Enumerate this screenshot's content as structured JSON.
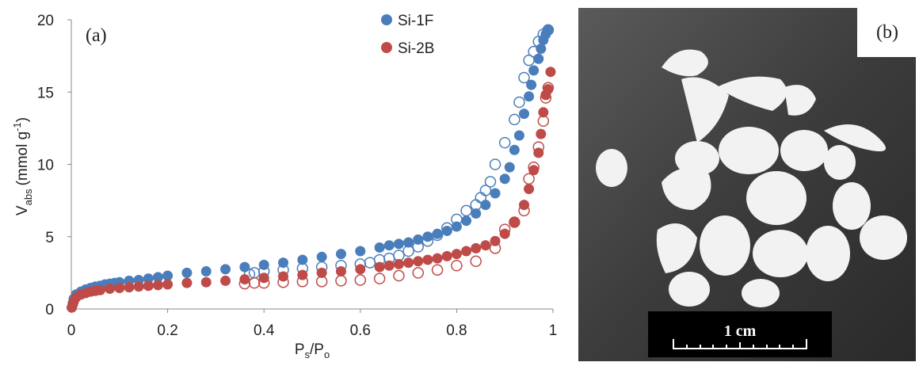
{
  "chart_data": {
    "type": "scatter",
    "panel_label": "(a)",
    "x_label": {
      "main": "P",
      "sub": "s",
      "mid": "/P",
      "sub2": "o"
    },
    "y_label": {
      "main": "V",
      "sub": "abs",
      "unit": "(mmol g",
      "sup": "-1",
      "close": ")"
    },
    "xlim": [
      0,
      1
    ],
    "xticks": [
      0,
      0.2,
      0.4,
      0.6,
      0.8,
      1
    ],
    "ylim": [
      0,
      20
    ],
    "yticks": [
      0,
      5,
      10,
      15,
      20
    ],
    "series": [
      {
        "name": "Si-1F",
        "color": "#4a7ebb",
        "adsorption": {
          "x": [
            0.001,
            0.003,
            0.005,
            0.01,
            0.02,
            0.03,
            0.04,
            0.05,
            0.06,
            0.07,
            0.08,
            0.09,
            0.1,
            0.12,
            0.14,
            0.16,
            0.18,
            0.2,
            0.24,
            0.28,
            0.32,
            0.36,
            0.4,
            0.44,
            0.48,
            0.52,
            0.56,
            0.6,
            0.64,
            0.66,
            0.68,
            0.7,
            0.72,
            0.74,
            0.76,
            0.78,
            0.8,
            0.82,
            0.84,
            0.86,
            0.88,
            0.9,
            0.91,
            0.92,
            0.93,
            0.94,
            0.95,
            0.955,
            0.96,
            0.97,
            0.975,
            0.98,
            0.985,
            0.99
          ],
          "y": [
            0.1,
            0.4,
            0.7,
            1.0,
            1.2,
            1.35,
            1.45,
            1.55,
            1.6,
            1.7,
            1.75,
            1.8,
            1.85,
            1.95,
            2.0,
            2.1,
            2.2,
            2.3,
            2.5,
            2.6,
            2.75,
            2.9,
            3.05,
            3.2,
            3.4,
            3.6,
            3.8,
            4.0,
            4.25,
            4.4,
            4.5,
            4.6,
            4.8,
            5.0,
            5.2,
            5.4,
            5.7,
            6.1,
            6.6,
            7.2,
            8.0,
            9.0,
            9.8,
            11.0,
            12.0,
            13.5,
            14.7,
            15.5,
            16.5,
            17.3,
            18.0,
            18.6,
            19.0,
            19.3
          ]
        },
        "desorption": {
          "x": [
            0.99,
            0.98,
            0.97,
            0.96,
            0.95,
            0.94,
            0.93,
            0.92,
            0.9,
            0.88,
            0.87,
            0.86,
            0.85,
            0.84,
            0.82,
            0.8,
            0.78,
            0.76,
            0.74,
            0.72,
            0.7,
            0.68,
            0.66,
            0.64,
            0.62,
            0.6,
            0.56,
            0.52,
            0.48,
            0.44,
            0.4,
            0.38,
            0.37
          ],
          "y": [
            19.3,
            19.0,
            18.5,
            17.8,
            17.2,
            16.0,
            14.3,
            13.1,
            11.5,
            10.0,
            8.8,
            8.2,
            7.7,
            7.2,
            6.8,
            6.2,
            5.6,
            5.1,
            4.7,
            4.3,
            4.0,
            3.7,
            3.5,
            3.4,
            3.2,
            3.1,
            3.0,
            2.9,
            2.8,
            2.7,
            2.6,
            2.5,
            2.4
          ]
        }
      },
      {
        "name": "Si-2B",
        "color": "#be4b48",
        "adsorption": {
          "x": [
            0.001,
            0.003,
            0.005,
            0.01,
            0.02,
            0.03,
            0.04,
            0.05,
            0.06,
            0.08,
            0.1,
            0.12,
            0.14,
            0.16,
            0.18,
            0.2,
            0.24,
            0.28,
            0.32,
            0.36,
            0.4,
            0.44,
            0.48,
            0.52,
            0.56,
            0.6,
            0.64,
            0.66,
            0.68,
            0.7,
            0.72,
            0.74,
            0.76,
            0.78,
            0.8,
            0.82,
            0.84,
            0.86,
            0.88,
            0.9,
            0.92,
            0.94,
            0.95,
            0.96,
            0.97,
            0.975,
            0.98,
            0.985,
            0.99,
            0.995
          ],
          "y": [
            0.1,
            0.3,
            0.5,
            0.8,
            1.0,
            1.1,
            1.2,
            1.25,
            1.3,
            1.4,
            1.45,
            1.5,
            1.55,
            1.6,
            1.65,
            1.7,
            1.8,
            1.85,
            1.95,
            2.05,
            2.15,
            2.25,
            2.35,
            2.5,
            2.6,
            2.75,
            2.9,
            3.0,
            3.1,
            3.2,
            3.3,
            3.4,
            3.5,
            3.65,
            3.8,
            4.0,
            4.2,
            4.4,
            4.7,
            5.2,
            6.0,
            7.2,
            8.3,
            9.6,
            10.8,
            12.1,
            13.6,
            14.8,
            15.2,
            16.4
          ]
        },
        "desorption": {
          "x": [
            0.99,
            0.985,
            0.98,
            0.97,
            0.96,
            0.95,
            0.94,
            0.92,
            0.9,
            0.88,
            0.84,
            0.8,
            0.76,
            0.72,
            0.68,
            0.64,
            0.6,
            0.56,
            0.52,
            0.48,
            0.44,
            0.4,
            0.38,
            0.36
          ],
          "y": [
            15.3,
            14.6,
            13.0,
            11.2,
            9.8,
            9.0,
            6.8,
            6.0,
            5.5,
            4.2,
            3.3,
            3.0,
            2.7,
            2.5,
            2.3,
            2.1,
            2.0,
            1.95,
            1.9,
            1.9,
            1.85,
            1.8,
            1.8,
            1.75
          ]
        }
      }
    ]
  },
  "photo": {
    "label": "(b)",
    "scale_bar": "1 cm"
  }
}
